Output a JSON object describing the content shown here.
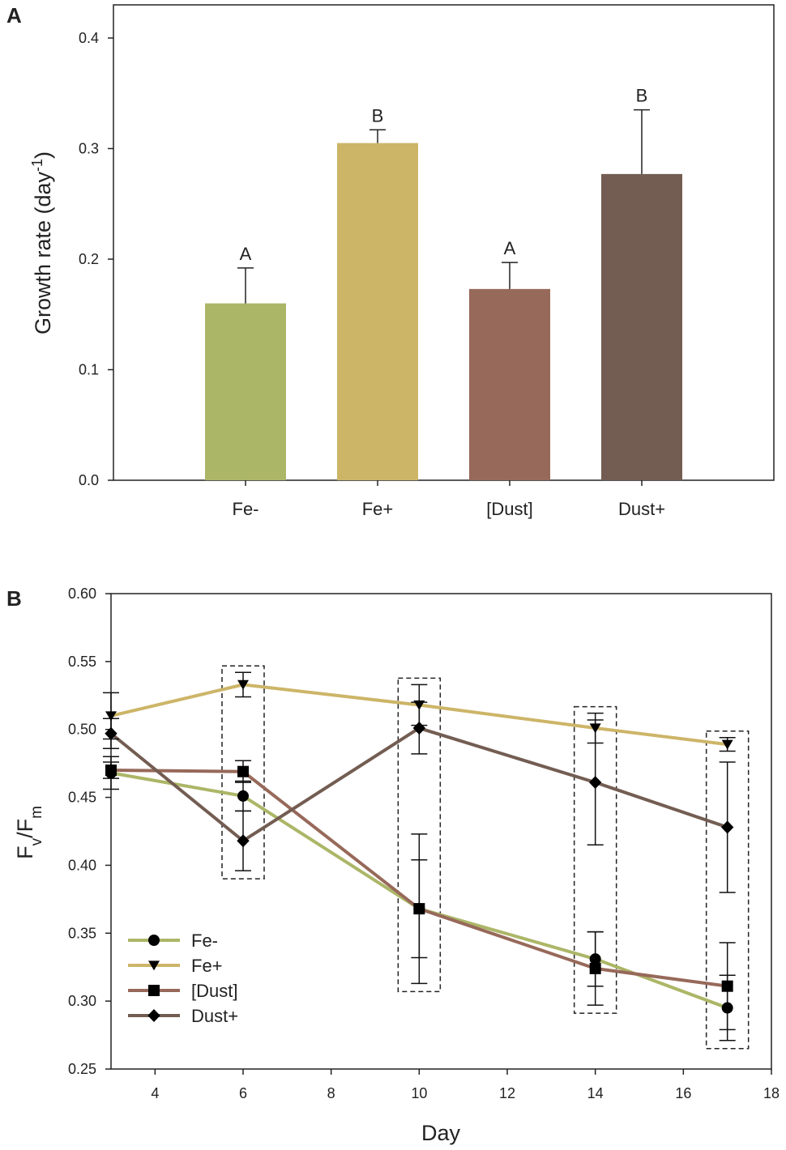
{
  "chart_data": [
    {
      "panel": "A",
      "type": "bar",
      "categories": [
        "Fe-",
        "Fe+",
        "[Dust]",
        "Dust+"
      ],
      "values": [
        0.16,
        0.305,
        0.173,
        0.277
      ],
      "errors": [
        0.032,
        0.012,
        0.024,
        0.058
      ],
      "significance": [
        "A",
        "B",
        "A",
        "B"
      ],
      "colors": [
        "#acb667",
        "#cdb568",
        "#97695a",
        "#735d52"
      ],
      "ylabel": "Growth rate (day",
      "ylabel_exponent": "-1",
      "ylabel_close": ")",
      "xlabel": "",
      "ylim": [
        0,
        0.43
      ],
      "yticks": [
        0.0,
        0.1,
        0.2,
        0.3,
        0.4
      ],
      "ytick_labels": [
        "0.0",
        "0.1",
        "0.2",
        "0.3",
        "0.4"
      ]
    },
    {
      "panel": "B",
      "type": "line",
      "xlabel": "Day",
      "ylabel_main": "F",
      "ylabel_sub1": "v",
      "ylabel_slash": "/F",
      "ylabel_sub2": "m",
      "xlim": [
        3,
        18
      ],
      "ylim": [
        0.25,
        0.6
      ],
      "xticks": [
        4,
        6,
        8,
        10,
        12,
        14,
        16,
        18
      ],
      "xtick_labels": [
        "4",
        "6",
        "8",
        "10",
        "12",
        "14",
        "16",
        "18"
      ],
      "yticks": [
        0.25,
        0.3,
        0.35,
        0.4,
        0.45,
        0.5,
        0.55,
        0.6
      ],
      "ytick_labels": [
        "0.25",
        "0.30",
        "0.35",
        "0.40",
        "0.45",
        "0.50",
        "0.55",
        "0.60"
      ],
      "legend_position": "bottom-left",
      "series": [
        {
          "name": "Fe-",
          "marker": "circle",
          "color": "#acb667",
          "x": [
            3,
            6,
            10,
            14,
            17
          ],
          "y": [
            0.468,
            0.451,
            0.368,
            0.331,
            0.295
          ],
          "err": [
            0.012,
            0.011,
            0.036,
            0.02,
            0.024
          ]
        },
        {
          "name": "Fe+",
          "marker": "triangle-down",
          "color": "#cdb568",
          "x": [
            3,
            6,
            10,
            14,
            17
          ],
          "y": [
            0.51,
            0.533,
            0.518,
            0.501,
            0.489
          ],
          "err": [
            0.017,
            0.009,
            0.015,
            0.011,
            0.005
          ]
        },
        {
          "name": "[Dust]",
          "marker": "square",
          "color": "#97695a",
          "x": [
            3,
            6,
            10,
            14,
            17
          ],
          "y": [
            0.47,
            0.469,
            0.368,
            0.324,
            0.311
          ],
          "err": [
            0.006,
            0.008,
            0.055,
            0.027,
            0.032
          ]
        },
        {
          "name": "Dust+",
          "marker": "diamond",
          "color": "#735d52",
          "x": [
            3,
            6,
            10,
            14,
            17
          ],
          "y": [
            0.497,
            0.418,
            0.501,
            0.461,
            0.428
          ],
          "err": [
            0.011,
            0.022,
            0.019,
            0.046,
            0.048
          ]
        }
      ],
      "highlight_days": [
        6,
        10,
        14,
        17
      ]
    }
  ]
}
